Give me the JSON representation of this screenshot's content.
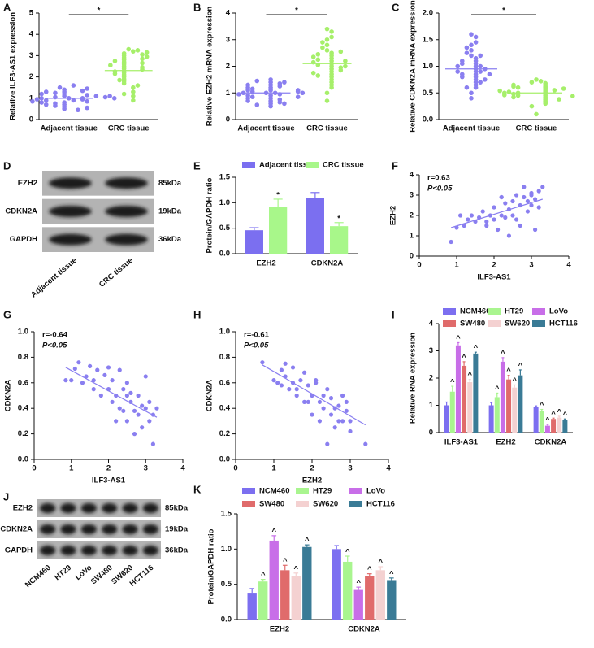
{
  "chart_data": [
    {
      "type": "dot",
      "panel": "A",
      "ylabel": "Relative ILF3-AS1 expression",
      "categories": [
        "Adjacent tissue",
        "CRC tissue"
      ],
      "significance": "*",
      "ylim": [
        0,
        5
      ],
      "yticks": [
        0,
        1,
        2,
        3,
        4,
        5
      ],
      "groups": [
        {
          "color": "#8a7ff0",
          "mean": 1.0,
          "values": [
            1.0,
            0.9,
            1.1,
            1.2,
            0.8,
            0.7,
            1.3,
            1.0,
            0.6,
            1.4,
            0.95,
            1.05,
            0.85,
            1.15,
            0.5,
            1.6,
            1.25,
            0.75,
            0.9,
            1.1,
            1.0,
            0.65,
            1.35,
            0.45,
            1.5,
            0.8,
            1.2,
            0.95,
            1.05,
            0.7,
            1.3,
            0.55,
            1.45,
            0.85,
            1.1,
            1.0
          ]
        },
        {
          "color": "#a6ef6a",
          "mean": 2.3,
          "values": [
            3.3,
            3.2,
            3.1,
            3.0,
            2.9,
            2.8,
            2.7,
            2.6,
            2.5,
            2.4,
            2.3,
            2.2,
            2.1,
            2.0,
            1.9,
            1.8,
            1.7,
            1.5,
            1.3,
            1.1,
            0.9,
            3.25,
            3.05,
            2.85,
            2.65,
            2.45,
            2.35,
            2.25,
            2.75,
            1.6,
            1.2,
            2.95,
            3.15,
            2.55,
            2.15,
            1.85
          ]
        }
      ]
    },
    {
      "type": "dot",
      "panel": "B",
      "ylabel": "Relative EZH2 mRNA expression",
      "categories": [
        "Adjacent tissue",
        "CRC tissue"
      ],
      "significance": "*",
      "ylim": [
        0,
        4
      ],
      "yticks": [
        0,
        1,
        2,
        3,
        4
      ],
      "groups": [
        {
          "color": "#8a7ff0",
          "mean": 1.0,
          "values": [
            1.0,
            0.9,
            1.1,
            1.2,
            0.8,
            0.7,
            1.3,
            1.0,
            0.6,
            1.4,
            0.95,
            1.05,
            0.85,
            1.15,
            0.5,
            1.5,
            1.25,
            0.75,
            0.9,
            1.1,
            1.0,
            0.65,
            1.35,
            0.55,
            1.45,
            0.8,
            1.2,
            0.95,
            1.05,
            0.7,
            1.3,
            0.6,
            1.4,
            0.85,
            1.1,
            1.0
          ]
        },
        {
          "color": "#a6ef6a",
          "mean": 2.1,
          "values": [
            3.4,
            3.3,
            3.0,
            2.8,
            2.6,
            2.5,
            2.4,
            2.3,
            2.2,
            2.1,
            2.0,
            1.9,
            1.8,
            1.7,
            1.6,
            1.5,
            1.4,
            1.3,
            1.2,
            1.0,
            0.7,
            2.9,
            2.7,
            2.45,
            2.25,
            2.05,
            1.95,
            1.85,
            2.15,
            2.35,
            1.65,
            3.1,
            2.55,
            1.75,
            2.0,
            2.2
          ]
        }
      ]
    },
    {
      "type": "dot",
      "panel": "C",
      "ylabel": "Relative CDKN2A mRNA expression",
      "categories": [
        "Adjacent tissue",
        "CRC tissue"
      ],
      "significance": "*",
      "ylim": [
        0,
        2
      ],
      "yticks": [
        {
          "value": 0,
          "label": "0.0"
        },
        0.5,
        {
          "value": 1,
          "label": "1.0"
        },
        1.5,
        {
          "value": 2,
          "label": "2.0"
        }
      ],
      "groups": [
        {
          "color": "#8a7ff0",
          "mean": 0.95,
          "values": [
            1.6,
            1.55,
            1.4,
            1.3,
            1.2,
            1.15,
            1.1,
            1.05,
            1.0,
            0.95,
            0.9,
            0.85,
            0.8,
            0.75,
            0.7,
            0.65,
            0.6,
            0.5,
            0.4,
            1.25,
            1.0,
            0.9,
            0.85,
            1.05,
            0.95,
            0.8,
            0.7,
            1.35,
            1.1,
            0.6,
            0.75,
            1.45,
            0.9,
            1.0,
            0.85,
            1.2
          ]
        },
        {
          "color": "#a6ef6a",
          "mean": 0.5,
          "values": [
            0.75,
            0.72,
            0.7,
            0.68,
            0.65,
            0.62,
            0.6,
            0.58,
            0.55,
            0.52,
            0.5,
            0.48,
            0.45,
            0.42,
            0.4,
            0.38,
            0.35,
            0.32,
            0.3,
            0.25,
            0.1,
            0.55,
            0.5,
            0.45,
            0.6,
            0.48,
            0.52,
            0.42,
            0.58,
            0.62,
            0.38,
            0.65,
            0.5,
            0.46,
            0.54,
            0.44
          ]
        }
      ]
    },
    {
      "type": "blot",
      "panel": "D",
      "rows": [
        "EZH2",
        "CDKN2A",
        "GAPDH"
      ],
      "sizes": [
        "85kDa",
        "19kDa",
        "36kDa"
      ],
      "lanes": [
        "Adjacent tissue",
        "CRC tissue"
      ]
    },
    {
      "type": "bar",
      "panel": "E",
      "ylabel": "Protein/GAPDH ratio",
      "categories": [
        "EZH2",
        "CDKN2A"
      ],
      "ylim": [
        0,
        1.5
      ],
      "yticks": [
        {
          "value": 0,
          "label": "0.0"
        },
        0.5,
        {
          "value": 1,
          "label": "1.0"
        },
        1.5
      ],
      "legend": "top",
      "series": [
        {
          "name": "Adjacent tissue",
          "color": "#7b6ff0",
          "values": [
            0.46,
            1.1
          ],
          "errors": [
            0.05,
            0.1
          ]
        },
        {
          "name": "CRC tissue",
          "color": "#a8f78a",
          "values": [
            0.92,
            0.54
          ],
          "errors": [
            0.15,
            0.07
          ],
          "marker": "*"
        }
      ]
    },
    {
      "type": "scatter",
      "panel": "F",
      "xlabel": "ILF3-AS1",
      "ylabel": "EZH2",
      "annotations": [
        "r=0.63",
        "P<0.05"
      ],
      "color": "#8a7ff0",
      "xlim": [
        0,
        4
      ],
      "xticks": [
        0,
        1,
        2,
        3,
        4
      ],
      "ylim": [
        0,
        4
      ],
      "yticks": [
        0,
        1,
        2,
        3,
        4
      ],
      "x": [
        0.85,
        1.0,
        1.2,
        1.3,
        1.4,
        1.5,
        1.6,
        1.7,
        1.8,
        1.9,
        2.0,
        2.0,
        2.1,
        2.2,
        2.2,
        2.3,
        2.3,
        2.4,
        2.4,
        2.5,
        2.5,
        2.6,
        2.6,
        2.7,
        2.7,
        2.8,
        2.8,
        2.9,
        2.9,
        3.0,
        3.0,
        3.1,
        3.1,
        3.2,
        3.2,
        3.3,
        1.1,
        1.8,
        2.2,
        3.0
      ],
      "y": [
        0.7,
        1.4,
        1.5,
        1.8,
        2.0,
        1.7,
        1.9,
        2.2,
        1.5,
        2.0,
        1.8,
        2.4,
        1.3,
        2.9,
        2.0,
        1.9,
        2.6,
        1.0,
        2.3,
        2.7,
        2.0,
        1.8,
        3.0,
        2.5,
        1.5,
        2.9,
        3.4,
        2.7,
        2.2,
        3.1,
        2.5,
        1.3,
        2.8,
        3.2,
        2.4,
        3.4,
        2.0,
        1.7,
        2.9,
        3.0
      ],
      "fit": {
        "x": [
          0.85,
          3.3
        ],
        "y": [
          1.4,
          2.8
        ]
      }
    },
    {
      "type": "scatter",
      "panel": "G",
      "xlabel": "ILF3-AS1",
      "ylabel": "CDKN2A",
      "annotations": [
        "r=-0.64",
        "P<0.05"
      ],
      "color": "#8a7ff0",
      "xlim": [
        0,
        4
      ],
      "xticks": [
        0,
        1,
        2,
        3,
        4
      ],
      "ylim": [
        0,
        1
      ],
      "yticks": [
        {
          "value": 0,
          "label": "0.0"
        },
        0.2,
        0.4,
        0.6,
        0.8,
        {
          "value": 1,
          "label": "1.0"
        }
      ],
      "x": [
        0.85,
        1.0,
        1.1,
        1.2,
        1.3,
        1.4,
        1.5,
        1.6,
        1.7,
        1.8,
        1.9,
        2.0,
        2.0,
        2.1,
        2.1,
        2.2,
        2.2,
        2.3,
        2.3,
        2.4,
        2.4,
        2.5,
        2.5,
        2.6,
        2.6,
        2.7,
        2.7,
        2.8,
        2.8,
        2.9,
        2.9,
        3.0,
        3.0,
        3.1,
        3.1,
        3.2,
        3.2,
        3.3,
        1.6,
        2.5
      ],
      "y": [
        0.62,
        0.62,
        0.71,
        0.76,
        0.6,
        0.65,
        0.73,
        0.62,
        0.7,
        0.5,
        0.66,
        0.55,
        0.72,
        0.45,
        0.62,
        0.3,
        0.5,
        0.7,
        0.4,
        0.55,
        0.38,
        0.6,
        0.3,
        0.45,
        0.52,
        0.38,
        0.2,
        0.5,
        0.35,
        0.42,
        0.25,
        0.65,
        0.4,
        0.3,
        0.45,
        0.12,
        0.35,
        0.4,
        0.55,
        0.5
      ],
      "fit": {
        "x": [
          0.85,
          3.3
        ],
        "y": [
          0.72,
          0.33
        ]
      }
    },
    {
      "type": "scatter",
      "panel": "H",
      "xlabel": "EZH2",
      "ylabel": "CDKN2A",
      "annotations": [
        "r=-0.61",
        "P<0.05"
      ],
      "color": "#8a7ff0",
      "xlim": [
        0,
        4
      ],
      "xticks": [
        0,
        1,
        2,
        3,
        4
      ],
      "ylim": [
        0,
        1
      ],
      "yticks": [
        {
          "value": 0,
          "label": "0.0"
        },
        0.2,
        0.4,
        0.6,
        0.8,
        {
          "value": 1,
          "label": "1.0"
        }
      ],
      "x": [
        0.7,
        1.0,
        1.1,
        1.2,
        1.3,
        1.4,
        1.5,
        1.5,
        1.6,
        1.7,
        1.8,
        1.9,
        2.0,
        2.0,
        2.1,
        2.2,
        2.2,
        2.3,
        2.4,
        2.4,
        2.5,
        2.5,
        2.6,
        2.7,
        2.8,
        2.8,
        2.9,
        3.0,
        3.4,
        1.8,
        2.1,
        2.6,
        1.3,
        1.6,
        2.3,
        2.9,
        3.0,
        1.9,
        2.7,
        1.2
      ],
      "y": [
        0.76,
        0.62,
        0.6,
        0.7,
        0.65,
        0.55,
        0.6,
        0.72,
        0.5,
        0.62,
        0.45,
        0.58,
        0.35,
        0.5,
        0.62,
        0.3,
        0.45,
        0.4,
        0.12,
        0.55,
        0.35,
        0.48,
        0.25,
        0.42,
        0.3,
        0.5,
        0.45,
        0.22,
        0.12,
        0.68,
        0.6,
        0.4,
        0.75,
        0.55,
        0.5,
        0.38,
        0.3,
        0.45,
        0.3,
        0.58
      ],
      "fit": {
        "x": [
          0.7,
          3.4
        ],
        "y": [
          0.74,
          0.27
        ]
      }
    },
    {
      "type": "bar",
      "panel": "I",
      "ylabel": "Relative RNA expression",
      "categories": [
        "ILF3-AS1",
        "EZH2",
        "CDKN2A"
      ],
      "ylim": [
        0,
        4
      ],
      "yticks": [
        0,
        1,
        2,
        3,
        4
      ],
      "legend": "top",
      "series": [
        {
          "name": "NCM460",
          "color": "#7c6ff0",
          "values": [
            1.0,
            1.0,
            0.95
          ],
          "errors": [
            0.12,
            0.1,
            0.03
          ]
        },
        {
          "name": "HT29",
          "color": "#a9f58f",
          "values": [
            1.5,
            1.3,
            0.8
          ],
          "errors": [
            0.2,
            0.15,
            0.05
          ],
          "marker": "^"
        },
        {
          "name": "LoVo",
          "color": "#c86ee8",
          "values": [
            3.2,
            2.6,
            0.25
          ],
          "errors": [
            0.1,
            0.15,
            0.05
          ],
          "marker": "^"
        },
        {
          "name": "SW480",
          "color": "#e06b6b",
          "values": [
            2.45,
            1.95,
            0.5
          ],
          "errors": [
            0.15,
            0.15,
            0.03
          ],
          "marker": "^"
        },
        {
          "name": "SW620",
          "color": "#f4d1d1",
          "values": [
            1.85,
            1.65,
            0.55
          ],
          "errors": [
            0.1,
            0.1,
            0.05
          ],
          "marker": "^"
        },
        {
          "name": "HCT116",
          "color": "#3a7b96",
          "values": [
            2.9,
            2.1,
            0.45
          ],
          "errors": [
            0.05,
            0.2,
            0.05
          ],
          "marker": "^"
        }
      ]
    },
    {
      "type": "blot",
      "panel": "J",
      "rows": [
        "EZH2",
        "CDKN2A",
        "GAPDH"
      ],
      "sizes": [
        "85kDa",
        "19kDa",
        "36kDa"
      ],
      "lanes": [
        "NCM460",
        "HT29",
        "LoVo",
        "SW480",
        "SW620",
        "HCT116"
      ]
    },
    {
      "type": "bar",
      "panel": "K",
      "ylabel": "Protein/GAPDH ratio",
      "categories": [
        "EZH2",
        "CDKN2A"
      ],
      "ylim": [
        0,
        1.5
      ],
      "yticks": [
        {
          "value": 0,
          "label": "0.0"
        },
        0.5,
        {
          "value": 1,
          "label": "1.0"
        },
        1.5
      ],
      "legend": "top",
      "series": [
        {
          "name": "NCM460",
          "color": "#7c6ff0",
          "values": [
            0.38,
            1.0
          ],
          "errors": [
            0.06,
            0.05
          ]
        },
        {
          "name": "HT29",
          "color": "#a9f58f",
          "values": [
            0.54,
            0.82
          ],
          "errors": [
            0.03,
            0.08
          ],
          "marker": "^"
        },
        {
          "name": "LoVo",
          "color": "#c86ee8",
          "values": [
            1.12,
            0.42
          ],
          "errors": [
            0.07,
            0.04
          ],
          "marker": "^"
        },
        {
          "name": "SW480",
          "color": "#e06b6b",
          "values": [
            0.7,
            0.62
          ],
          "errors": [
            0.07,
            0.03
          ],
          "marker": "^"
        },
        {
          "name": "SW620",
          "color": "#f4d1d1",
          "values": [
            0.62,
            0.7
          ],
          "errors": [
            0.04,
            0.05
          ],
          "marker": "^"
        },
        {
          "name": "HCT116",
          "color": "#3a7b96",
          "values": [
            1.03,
            0.56
          ],
          "errors": [
            0.03,
            0.03
          ],
          "marker": "^"
        }
      ]
    }
  ]
}
